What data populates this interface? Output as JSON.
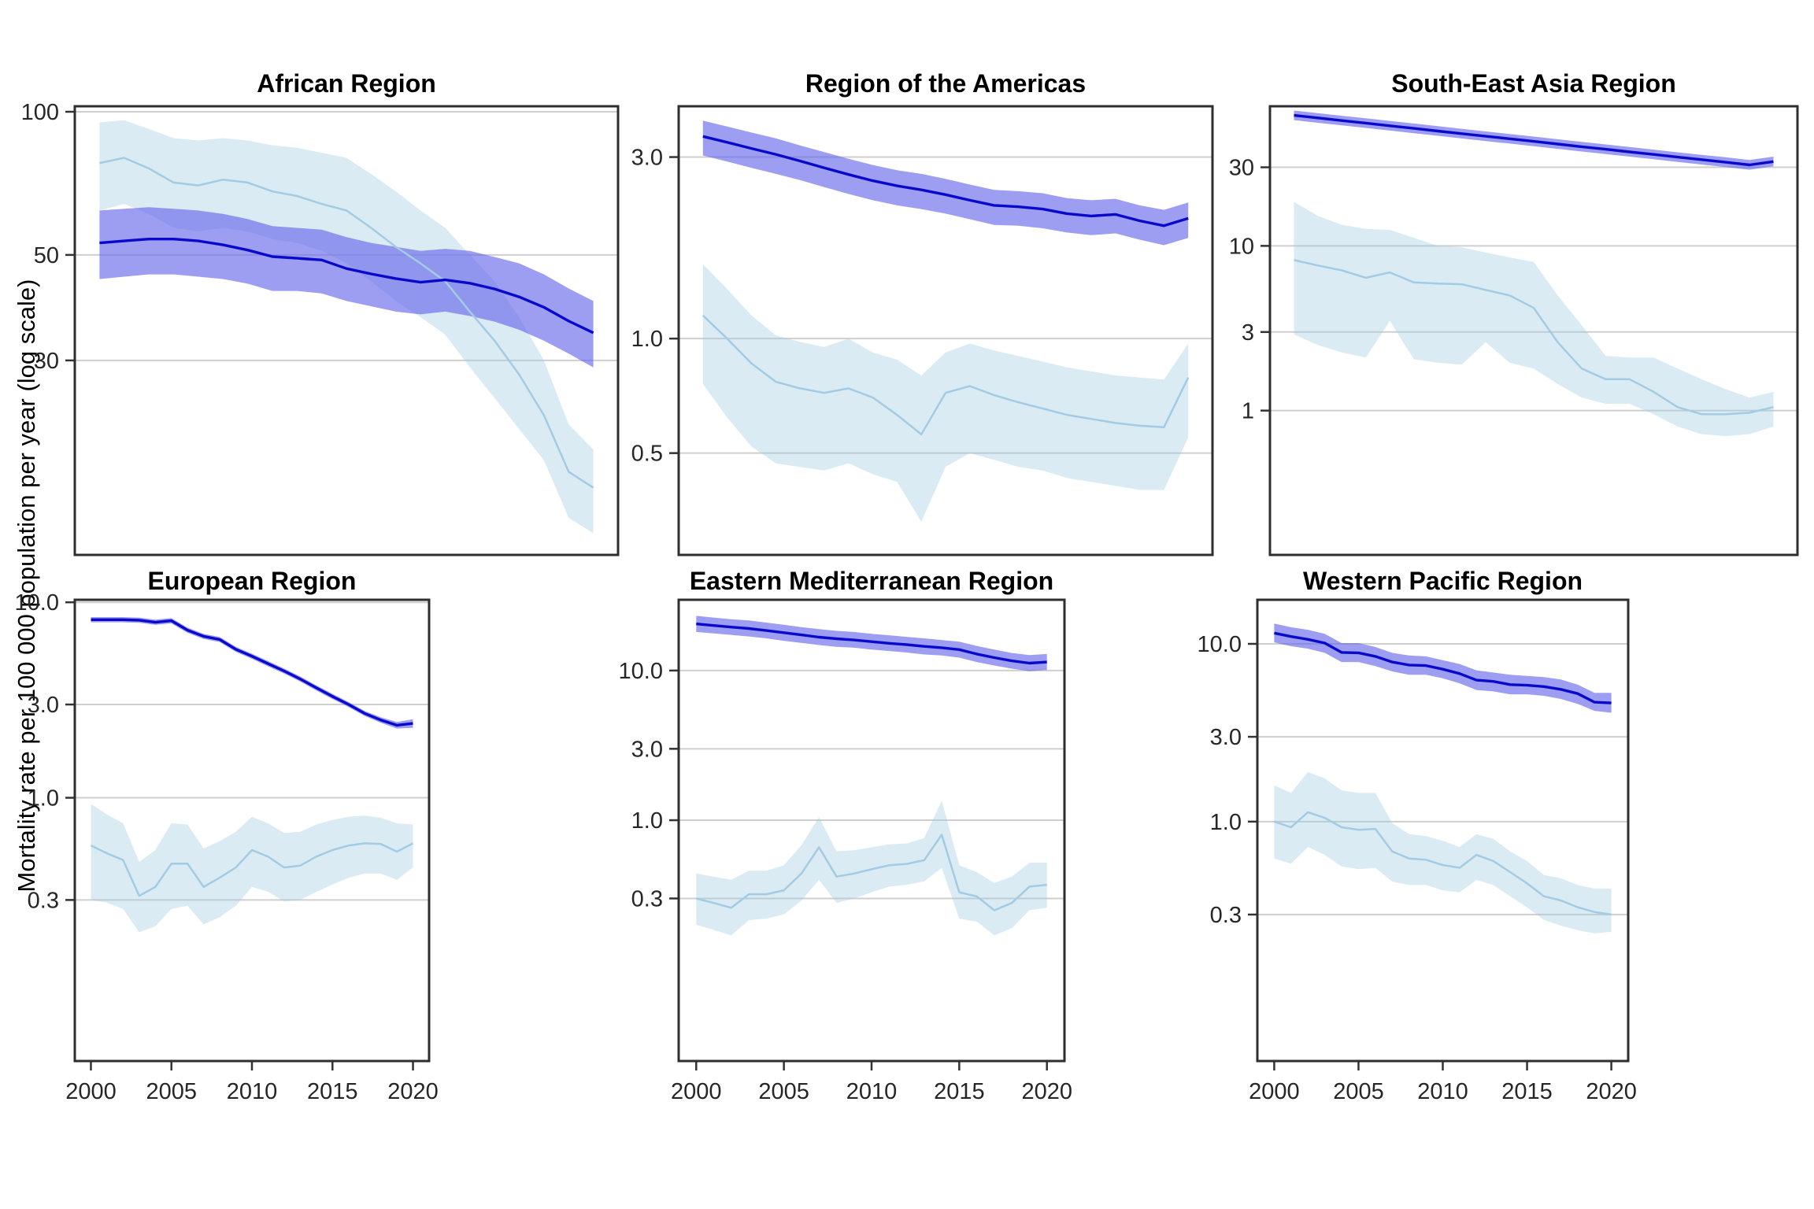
{
  "figure": {
    "ylabel": "Mortality rate per 100 000 population per year (log scale)",
    "years": [
      2000,
      2001,
      2002,
      2003,
      2004,
      2005,
      2006,
      2007,
      2008,
      2009,
      2010,
      2011,
      2012,
      2013,
      2014,
      2015,
      2016,
      2017,
      2018,
      2019,
      2020
    ],
    "x_ticks": [
      2000,
      2005,
      2010,
      2015,
      2020
    ],
    "colors": {
      "dark_line": "#0909cc",
      "dark_band": "rgba(105,105,235,0.65)",
      "light_line": "#a3cbe3",
      "light_band": "rgba(158,202,225,0.38)",
      "grid": "#cfcfcf",
      "border": "#2e2e2e",
      "tick": "#333333",
      "text": "#262626"
    }
  },
  "chart_data": [
    {
      "type": "line",
      "title": "African Region",
      "xlabel": "",
      "ylabel": "Mortality rate per 100 000 population per year (log scale)",
      "xlim": [
        2000,
        2020
      ],
      "ylim": [
        11.7,
        102.7
      ],
      "grid": "horizontal-only",
      "legend": "none",
      "yticks": [
        {
          "v": 100,
          "label": "100"
        },
        {
          "v": 50,
          "label": "50"
        },
        {
          "v": 30,
          "label": "30"
        }
      ],
      "series": [
        {
          "name": "estimate-dark",
          "values": [
            53,
            53.5,
            54,
            54,
            53.5,
            52.5,
            51.2,
            49.6,
            49.2,
            48.8,
            46.8,
            45.6,
            44.6,
            43.8,
            44.3,
            43.6,
            42.4,
            40.8,
            38.8,
            36.3,
            34.3
          ],
          "band_upper": [
            62,
            62.5,
            63,
            62.5,
            62,
            61,
            59.5,
            57.5,
            57,
            56.5,
            54.5,
            53,
            52,
            51,
            51.5,
            51,
            49.5,
            48,
            45.5,
            42.5,
            40
          ],
          "band_lower": [
            44.5,
            45,
            45.5,
            45.5,
            45,
            44.5,
            43.5,
            42,
            42,
            41.5,
            40,
            39,
            38,
            37.5,
            38,
            37.2,
            36.2,
            34.8,
            33,
            31,
            29
          ]
        },
        {
          "name": "estimate-light",
          "values": [
            78,
            80,
            76,
            71,
            70,
            72,
            71,
            68,
            66.5,
            64,
            62,
            57,
            52,
            48,
            44,
            38,
            33,
            28,
            23,
            17.5,
            16.2
          ],
          "band_upper": [
            95,
            96,
            92,
            88,
            87,
            88,
            87,
            85,
            84,
            82,
            80,
            74,
            68,
            62,
            57,
            50,
            44,
            37,
            30,
            22,
            19.5
          ],
          "band_lower": [
            62,
            64,
            61,
            57,
            56,
            57,
            56,
            54,
            53,
            51,
            48,
            44,
            40,
            37,
            34,
            29,
            25,
            21.5,
            18.5,
            14,
            13
          ]
        }
      ]
    },
    {
      "type": "line",
      "title": "Region of the Americas",
      "xlabel": "",
      "xlim": [
        2000,
        2020
      ],
      "ylim": [
        0.27,
        4.08
      ],
      "grid": "horizontal-only",
      "legend": "none",
      "yticks": [
        {
          "v": 3,
          "label": "3.0"
        },
        {
          "v": 1,
          "label": "1.0"
        },
        {
          "v": 0.5,
          "label": "0.5"
        }
      ],
      "series": [
        {
          "name": "estimate-dark",
          "values": [
            3.4,
            3.28,
            3.16,
            3.05,
            2.93,
            2.81,
            2.7,
            2.6,
            2.52,
            2.46,
            2.39,
            2.31,
            2.24,
            2.22,
            2.19,
            2.13,
            2.1,
            2.12,
            2.04,
            1.98,
            2.07
          ],
          "band_upper": [
            3.74,
            3.61,
            3.48,
            3.36,
            3.22,
            3.09,
            2.97,
            2.86,
            2.77,
            2.71,
            2.63,
            2.54,
            2.46,
            2.44,
            2.41,
            2.34,
            2.31,
            2.33,
            2.24,
            2.18,
            2.28
          ],
          "band_lower": [
            3.03,
            2.92,
            2.81,
            2.71,
            2.61,
            2.5,
            2.4,
            2.31,
            2.24,
            2.19,
            2.13,
            2.06,
            1.99,
            1.98,
            1.95,
            1.9,
            1.87,
            1.89,
            1.82,
            1.76,
            1.84
          ]
        },
        {
          "name": "estimate-light",
          "values": [
            1.15,
            1.0,
            0.86,
            0.77,
            0.74,
            0.72,
            0.74,
            0.7,
            0.63,
            0.56,
            0.72,
            0.75,
            0.71,
            0.68,
            0.655,
            0.63,
            0.615,
            0.6,
            0.59,
            0.585,
            0.79
          ],
          "band_upper": [
            1.57,
            1.35,
            1.15,
            1.02,
            0.98,
            0.95,
            1.0,
            0.92,
            0.88,
            0.8,
            0.92,
            0.97,
            0.93,
            0.9,
            0.87,
            0.84,
            0.82,
            0.8,
            0.79,
            0.78,
            0.97
          ],
          "band_lower": [
            0.76,
            0.62,
            0.52,
            0.47,
            0.46,
            0.45,
            0.47,
            0.44,
            0.42,
            0.33,
            0.46,
            0.5,
            0.48,
            0.46,
            0.45,
            0.43,
            0.42,
            0.41,
            0.4,
            0.4,
            0.55
          ]
        }
      ]
    },
    {
      "type": "line",
      "title": "South-East Asia Region",
      "xlabel": "",
      "xlim": [
        2000,
        2020
      ],
      "ylim": [
        0.133,
        70.4
      ],
      "grid": "horizontal-only",
      "legend": "none",
      "yticks": [
        {
          "v": 30,
          "label": "30"
        },
        {
          "v": 10,
          "label": "10"
        },
        {
          "v": 3,
          "label": "3"
        },
        {
          "v": 1,
          "label": "1"
        }
      ],
      "series": [
        {
          "name": "estimate-dark",
          "values": [
            62,
            59.8,
            57.6,
            55.6,
            53.6,
            51.7,
            49.8,
            48.0,
            46.3,
            44.7,
            43.1,
            41.5,
            40.0,
            38.6,
            37.2,
            35.9,
            34.6,
            33.4,
            32.2,
            31.0,
            32.5
          ],
          "band_upper": [
            66.3,
            64,
            61.6,
            59.5,
            57.4,
            55.3,
            53.3,
            51.4,
            49.5,
            47.8,
            46.1,
            44.4,
            42.8,
            41.3,
            39.8,
            38.4,
            37,
            35.7,
            34.5,
            33.2,
            34.8
          ],
          "band_lower": [
            58,
            55.9,
            53.9,
            52,
            50.1,
            48.3,
            46.6,
            44.9,
            43.3,
            41.8,
            40.3,
            38.8,
            37.4,
            36.1,
            34.8,
            33.6,
            32.3,
            31.2,
            30.1,
            29,
            30.4
          ]
        },
        {
          "name": "estimate-light",
          "values": [
            8.2,
            7.6,
            7.1,
            6.4,
            6.9,
            6.0,
            5.9,
            5.85,
            5.4,
            5.0,
            4.2,
            2.6,
            1.8,
            1.55,
            1.55,
            1.3,
            1.05,
            0.95,
            0.95,
            0.97,
            1.05
          ],
          "band_upper": [
            18.5,
            15.2,
            13.4,
            12.7,
            12.5,
            11.2,
            10.0,
            9.8,
            9.1,
            8.5,
            8.0,
            5.0,
            3.3,
            2.15,
            2.1,
            2.1,
            1.8,
            1.55,
            1.35,
            1.2,
            1.3
          ],
          "band_lower": [
            2.9,
            2.5,
            2.25,
            2.1,
            3.5,
            2.05,
            1.95,
            1.9,
            2.6,
            1.95,
            1.8,
            1.45,
            1.2,
            1.1,
            1.1,
            0.95,
            0.8,
            0.72,
            0.7,
            0.72,
            0.8
          ]
        }
      ]
    },
    {
      "type": "line",
      "title": "European Region",
      "xlabel": "",
      "xlim": [
        2000,
        2020
      ],
      "ylim": [
        0.045,
        10.3
      ],
      "grid": "horizontal-only",
      "legend": "none",
      "yticks": [
        {
          "v": 10,
          "label": "10.0"
        },
        {
          "v": 3,
          "label": "3.0"
        },
        {
          "v": 1,
          "label": "1.0"
        },
        {
          "v": 0.3,
          "label": "0.3"
        }
      ],
      "series": [
        {
          "name": "estimate-dark",
          "values": [
            8.15,
            8.15,
            8.15,
            8.1,
            7.9,
            8.05,
            7.2,
            6.7,
            6.45,
            5.75,
            5.3,
            4.85,
            4.45,
            4.05,
            3.65,
            3.3,
            3.0,
            2.7,
            2.5,
            2.35,
            2.4
          ],
          "band_upper": [
            8.4,
            8.4,
            8.4,
            8.35,
            8.15,
            8.3,
            7.42,
            6.9,
            6.65,
            5.92,
            5.46,
            5.0,
            4.58,
            4.17,
            3.76,
            3.4,
            3.09,
            2.78,
            2.58,
            2.44,
            2.52
          ],
          "band_lower": [
            7.9,
            7.9,
            7.9,
            7.85,
            7.66,
            7.8,
            6.98,
            6.5,
            6.26,
            5.58,
            5.14,
            4.7,
            4.32,
            3.93,
            3.54,
            3.2,
            2.91,
            2.62,
            2.42,
            2.26,
            2.28
          ]
        },
        {
          "name": "estimate-light",
          "values": [
            0.57,
            0.52,
            0.48,
            0.315,
            0.35,
            0.46,
            0.46,
            0.35,
            0.39,
            0.44,
            0.54,
            0.5,
            0.44,
            0.45,
            0.5,
            0.54,
            0.57,
            0.585,
            0.58,
            0.53,
            0.585
          ],
          "band_upper": [
            0.93,
            0.82,
            0.74,
            0.47,
            0.54,
            0.74,
            0.73,
            0.55,
            0.6,
            0.67,
            0.8,
            0.74,
            0.66,
            0.67,
            0.73,
            0.77,
            0.8,
            0.81,
            0.79,
            0.74,
            0.73
          ],
          "band_lower": [
            0.3,
            0.29,
            0.27,
            0.205,
            0.22,
            0.27,
            0.28,
            0.225,
            0.245,
            0.28,
            0.35,
            0.33,
            0.295,
            0.3,
            0.33,
            0.36,
            0.39,
            0.41,
            0.41,
            0.38,
            0.44
          ]
        }
      ]
    },
    {
      "type": "line",
      "title": "Eastern Mediterranean Region",
      "xlabel": "",
      "xlim": [
        2000,
        2020
      ],
      "ylim": [
        0.0246,
        29.7
      ],
      "grid": "horizontal-only",
      "legend": "none",
      "yticks": [
        {
          "v": 10,
          "label": "10.0"
        },
        {
          "v": 3,
          "label": "3.0"
        },
        {
          "v": 1,
          "label": "1.0"
        },
        {
          "v": 0.3,
          "label": "0.3"
        }
      ],
      "series": [
        {
          "name": "estimate-dark",
          "values": [
            20.5,
            20.0,
            19.5,
            19.1,
            18.5,
            17.9,
            17.3,
            16.7,
            16.3,
            16.0,
            15.6,
            15.2,
            14.9,
            14.5,
            14.2,
            13.8,
            12.9,
            12.2,
            11.6,
            11.2,
            11.4
          ],
          "band_upper": [
            23.2,
            22.6,
            22.0,
            21.6,
            20.9,
            20.2,
            19.5,
            18.9,
            18.4,
            18.1,
            17.6,
            17.2,
            16.8,
            16.4,
            16.0,
            15.6,
            14.6,
            13.8,
            13.1,
            12.7,
            12.9
          ],
          "band_lower": [
            18.1,
            17.7,
            17.3,
            16.9,
            16.4,
            15.8,
            15.3,
            14.8,
            14.4,
            14.2,
            13.8,
            13.5,
            13.2,
            12.8,
            12.6,
            12.2,
            11.4,
            10.8,
            10.3,
            9.9,
            10.1
          ]
        },
        {
          "name": "estimate-light",
          "values": [
            0.3,
            0.28,
            0.26,
            0.32,
            0.32,
            0.34,
            0.44,
            0.66,
            0.42,
            0.44,
            0.47,
            0.5,
            0.51,
            0.54,
            0.8,
            0.33,
            0.31,
            0.25,
            0.28,
            0.36,
            0.37
          ],
          "band_upper": [
            0.44,
            0.42,
            0.4,
            0.46,
            0.46,
            0.5,
            0.68,
            1.05,
            0.62,
            0.63,
            0.66,
            0.69,
            0.7,
            0.76,
            1.35,
            0.5,
            0.45,
            0.38,
            0.42,
            0.52,
            0.52
          ],
          "band_lower": [
            0.2,
            0.185,
            0.17,
            0.215,
            0.22,
            0.235,
            0.29,
            0.4,
            0.28,
            0.3,
            0.33,
            0.36,
            0.37,
            0.39,
            0.48,
            0.22,
            0.21,
            0.17,
            0.19,
            0.25,
            0.26
          ]
        }
      ]
    },
    {
      "type": "line",
      "title": "Western Pacific Region",
      "xlabel": "",
      "xlim": [
        2000,
        2020
      ],
      "ylim": [
        0.045,
        17.7
      ],
      "grid": "horizontal-only",
      "legend": "none",
      "yticks": [
        {
          "v": 10,
          "label": "10.0"
        },
        {
          "v": 3,
          "label": "3.0"
        },
        {
          "v": 1,
          "label": "1.0"
        },
        {
          "v": 0.3,
          "label": "0.3"
        }
      ],
      "series": [
        {
          "name": "estimate-dark",
          "values": [
            11.5,
            11.0,
            10.6,
            10.1,
            8.95,
            8.9,
            8.5,
            7.9,
            7.6,
            7.55,
            7.2,
            6.8,
            6.25,
            6.15,
            5.9,
            5.85,
            5.75,
            5.55,
            5.25,
            4.7,
            4.65
          ],
          "band_upper": [
            13.0,
            12.4,
            12.0,
            11.4,
            10.1,
            10.1,
            9.6,
            8.9,
            8.6,
            8.5,
            8.1,
            7.7,
            7.1,
            6.9,
            6.7,
            6.6,
            6.5,
            6.3,
            5.9,
            5.3,
            5.3
          ],
          "band_lower": [
            10.2,
            9.7,
            9.4,
            8.9,
            7.9,
            7.9,
            7.5,
            7.0,
            6.7,
            6.7,
            6.4,
            6.0,
            5.5,
            5.4,
            5.2,
            5.2,
            5.1,
            4.9,
            4.6,
            4.2,
            4.1
          ]
        },
        {
          "name": "estimate-light",
          "values": [
            1.0,
            0.93,
            1.13,
            1.05,
            0.93,
            0.9,
            0.91,
            0.68,
            0.62,
            0.61,
            0.57,
            0.55,
            0.65,
            0.6,
            0.52,
            0.45,
            0.38,
            0.36,
            0.33,
            0.31,
            0.3
          ],
          "band_upper": [
            1.6,
            1.45,
            1.9,
            1.75,
            1.5,
            1.45,
            1.45,
            0.98,
            0.85,
            0.83,
            0.78,
            0.72,
            0.85,
            0.8,
            0.68,
            0.6,
            0.5,
            0.48,
            0.44,
            0.42,
            0.42
          ],
          "band_lower": [
            0.62,
            0.58,
            0.72,
            0.65,
            0.56,
            0.54,
            0.55,
            0.46,
            0.44,
            0.44,
            0.41,
            0.4,
            0.47,
            0.44,
            0.38,
            0.33,
            0.28,
            0.26,
            0.245,
            0.235,
            0.24
          ]
        }
      ]
    }
  ]
}
